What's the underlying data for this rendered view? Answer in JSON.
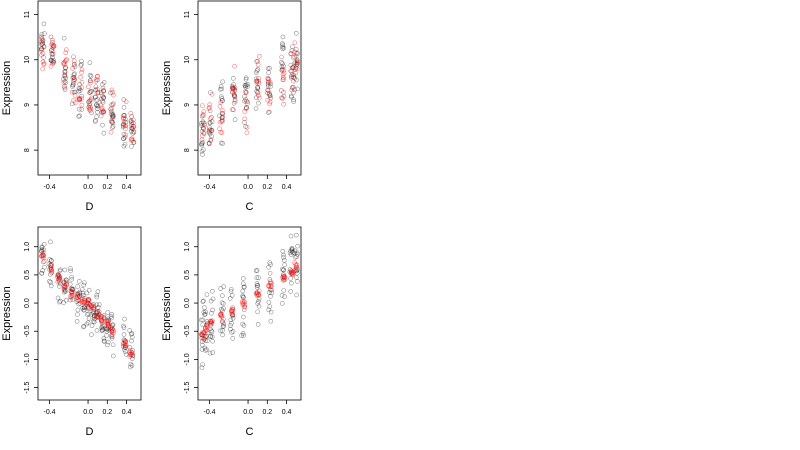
{
  "figure": {
    "background": "#ffffff",
    "point_colors": {
      "black": "#000000",
      "red": "#ff0000"
    }
  },
  "chart_data": [
    {
      "type": "scatter",
      "panel": "top-left",
      "xlabel": "D",
      "ylabel": "Expression",
      "xlim": [
        -0.52,
        0.55
      ],
      "ylim": [
        7.45,
        11.3
      ],
      "xticks": [
        -0.4,
        0.0,
        0.2,
        0.4
      ],
      "xtick_labels": [
        "-0.4",
        "0.0",
        "0.2",
        "0.4"
      ],
      "yticks": [
        8,
        9,
        10,
        11
      ],
      "ytick_labels": [
        "8",
        "9",
        "10",
        "11"
      ],
      "grid": false,
      "legend": "none",
      "groups_x": [
        -0.47,
        -0.37,
        -0.24,
        -0.15,
        -0.08,
        0.02,
        0.09,
        0.15,
        0.25,
        0.38,
        0.46
      ],
      "series": [
        {
          "color": "#000000",
          "points_per_group": 15,
          "trend": [
            10.35,
            10.05,
            9.8,
            9.5,
            9.35,
            9.2,
            9.1,
            9.0,
            8.85,
            8.6,
            8.45
          ],
          "spread": [
            0.35,
            0.35,
            0.4,
            0.45,
            0.45,
            0.5,
            0.45,
            0.45,
            0.4,
            0.4,
            0.35
          ]
        },
        {
          "color": "#ff0000",
          "points_per_group": 10,
          "trend": [
            10.3,
            10.1,
            9.85,
            9.55,
            9.35,
            9.1,
            9.5,
            9.05,
            8.9,
            8.7,
            8.5
          ],
          "spread": [
            0.4,
            0.3,
            0.35,
            0.4,
            0.45,
            0.45,
            0.4,
            0.35,
            0.35,
            0.35,
            0.3
          ]
        }
      ]
    },
    {
      "type": "scatter",
      "panel": "top-right",
      "xlabel": "C",
      "ylabel": "Expression",
      "xlim": [
        -0.52,
        0.55
      ],
      "ylim": [
        7.45,
        11.3
      ],
      "xticks": [
        -0.4,
        0.0,
        0.2,
        0.4
      ],
      "xtick_labels": [
        "-0.4",
        "0.0",
        "0.2",
        "0.4"
      ],
      "yticks": [
        8,
        9,
        10,
        11
      ],
      "ytick_labels": [
        "8",
        "9",
        "10",
        "11"
      ],
      "grid": false,
      "legend": "none",
      "groups_x": [
        -0.47,
        -0.39,
        -0.28,
        -0.15,
        -0.02,
        0.1,
        0.22,
        0.36,
        0.46,
        0.5
      ],
      "series": [
        {
          "color": "#000000",
          "points_per_group": 16,
          "trend": [
            8.4,
            8.6,
            8.8,
            9.2,
            9.2,
            9.5,
            9.3,
            9.7,
            9.8,
            9.9
          ],
          "spread": [
            0.45,
            0.45,
            0.45,
            0.5,
            0.45,
            0.5,
            0.3,
            0.5,
            0.55,
            0.55
          ]
        },
        {
          "color": "#ff0000",
          "points_per_group": 10,
          "trend": [
            8.55,
            8.65,
            8.75,
            9.2,
            8.95,
            9.55,
            9.3,
            9.6,
            9.7,
            9.8
          ],
          "spread": [
            0.35,
            0.35,
            0.4,
            0.5,
            0.45,
            0.5,
            0.3,
            0.45,
            0.45,
            0.45
          ]
        }
      ]
    },
    {
      "type": "scatter",
      "panel": "bottom-left",
      "xlabel": "D",
      "ylabel": "Expression",
      "xlim": [
        -0.52,
        0.55
      ],
      "ylim": [
        -1.72,
        1.35
      ],
      "xticks": [
        -0.4,
        0.0,
        0.2,
        0.4
      ],
      "xtick_labels": [
        "-0.4",
        "0.0",
        "0.2",
        "0.4"
      ],
      "yticks": [
        -1.5,
        -1.0,
        -0.5,
        0.0,
        0.5,
        1.0
      ],
      "ytick_labels": [
        "-1.5",
        "-1.0",
        "-0.5",
        "0.0",
        "0.5",
        "1.0"
      ],
      "grid": false,
      "legend": "none",
      "groups_x": [
        -0.47,
        -0.39,
        -0.3,
        -0.24,
        -0.17,
        -0.1,
        -0.05,
        0.0,
        0.05,
        0.1,
        0.15,
        0.2,
        0.25,
        0.38,
        0.45
      ],
      "series": [
        {
          "color": "#000000",
          "points_per_group": 14,
          "trend": [
            0.82,
            0.65,
            0.45,
            0.3,
            0.18,
            0.05,
            0.0,
            -0.05,
            -0.15,
            -0.25,
            -0.35,
            -0.45,
            -0.55,
            -0.72,
            -0.85
          ],
          "spread": [
            0.3,
            0.3,
            0.3,
            0.3,
            0.3,
            0.3,
            0.3,
            0.3,
            0.3,
            0.3,
            0.3,
            0.3,
            0.3,
            0.3,
            0.3
          ]
        },
        {
          "color": "#ff0000",
          "points_per_group": 8,
          "trend": [
            0.82,
            0.62,
            0.42,
            0.3,
            0.2,
            0.1,
            0.05,
            -0.02,
            -0.1,
            -0.2,
            -0.3,
            -0.38,
            -0.48,
            -0.72,
            -0.88
          ],
          "spread": [
            0.06,
            0.06,
            0.06,
            0.06,
            0.06,
            0.06,
            0.06,
            0.06,
            0.06,
            0.06,
            0.06,
            0.06,
            0.06,
            0.06,
            0.06
          ]
        }
      ]
    },
    {
      "type": "scatter",
      "panel": "bottom-right",
      "xlabel": "C",
      "ylabel": "Expression",
      "xlim": [
        -0.52,
        0.55
      ],
      "ylim": [
        -1.72,
        1.35
      ],
      "xticks": [
        -0.4,
        0.0,
        0.2,
        0.4
      ],
      "xtick_labels": [
        "-0.4",
        "0.0",
        "0.2",
        "0.4"
      ],
      "yticks": [
        -1.5,
        -1.0,
        -0.5,
        0.0,
        0.5,
        1.0
      ],
      "ytick_labels": [
        "-1.5",
        "-1.0",
        "-0.5",
        "0.0",
        "0.5",
        "1.0"
      ],
      "grid": false,
      "legend": "none",
      "groups_x": [
        -0.47,
        -0.44,
        -0.38,
        -0.27,
        -0.17,
        -0.05,
        0.1,
        0.23,
        0.37,
        0.45,
        0.5
      ],
      "series": [
        {
          "color": "#000000",
          "points_per_group": 16,
          "trend": [
            -0.5,
            -0.45,
            -0.35,
            -0.25,
            -0.1,
            0.0,
            0.1,
            0.25,
            0.4,
            0.6,
            0.75
          ],
          "spread": [
            0.45,
            0.45,
            0.45,
            0.45,
            0.45,
            0.45,
            0.45,
            0.45,
            0.4,
            0.4,
            0.4
          ]
        },
        {
          "color": "#ff0000",
          "points_per_group": 8,
          "trend": [
            -0.55,
            -0.45,
            -0.35,
            -0.25,
            -0.15,
            0.0,
            0.15,
            0.3,
            0.45,
            0.55,
            0.65
          ],
          "spread": [
            0.06,
            0.06,
            0.06,
            0.06,
            0.06,
            0.06,
            0.06,
            0.06,
            0.06,
            0.06,
            0.06
          ]
        }
      ]
    }
  ]
}
